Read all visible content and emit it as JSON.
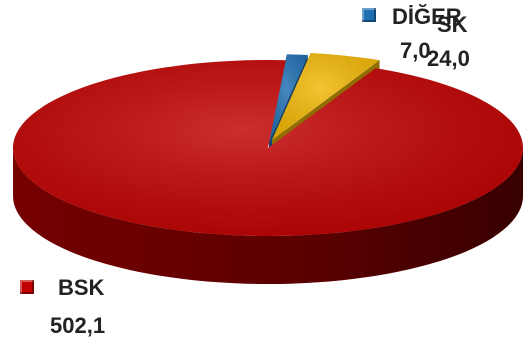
{
  "chart_data": {
    "type": "pie",
    "labels": [
      "BSK",
      "SK",
      "DİĞER"
    ],
    "values": [
      502.1,
      24.0,
      7.0
    ],
    "value_labels": [
      "502,1",
      "24,0",
      "7,0"
    ],
    "colors": [
      "#c00000",
      "#f2b705",
      "#1f6fb2"
    ]
  }
}
